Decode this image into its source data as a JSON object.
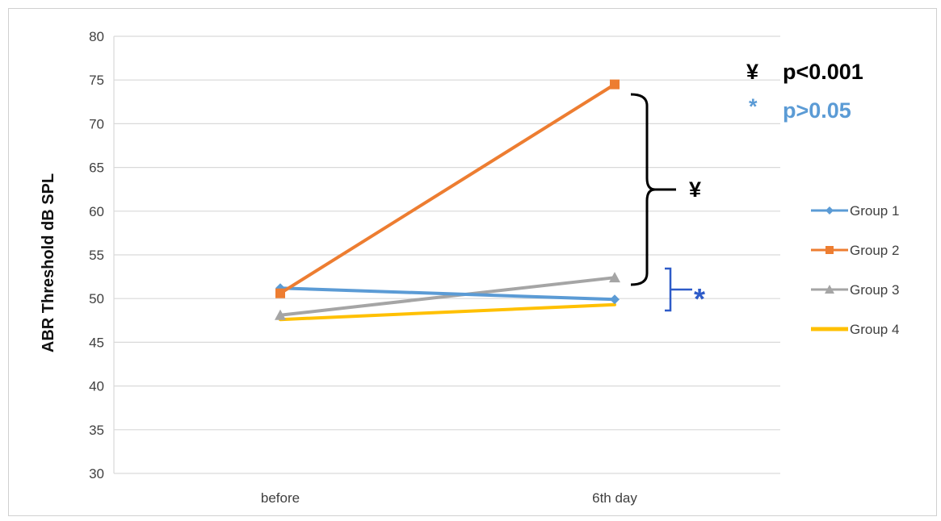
{
  "chart_data": {
    "type": "line",
    "title": "",
    "xlabel": "",
    "ylabel": "ABR  Threshold dB SPL",
    "categories": [
      "before",
      "6th day"
    ],
    "ylim": [
      30,
      80
    ],
    "yticks": [
      30,
      35,
      40,
      45,
      50,
      55,
      60,
      65,
      70,
      75,
      80
    ],
    "grid": true,
    "legend_position": "right",
    "series": [
      {
        "name": "Group 1",
        "values": [
          51.2,
          49.9
        ],
        "color": "#5b9bd5",
        "marker": "diamond"
      },
      {
        "name": "Group 2",
        "values": [
          50.6,
          74.5
        ],
        "color": "#ed7d31",
        "marker": "square"
      },
      {
        "name": "Group 3",
        "values": [
          48.1,
          52.4
        ],
        "color": "#a5a5a5",
        "marker": "triangle"
      },
      {
        "name": "Group 4",
        "values": [
          47.6,
          49.3
        ],
        "color": "#ffc000",
        "marker": "none"
      }
    ],
    "annotations": {
      "legend_p1_symbol": "¥",
      "legend_p1_text": "p<0.001",
      "legend_p2_symbol": "*",
      "legend_p2_text": "p>0.05",
      "bracket1_symbol": "¥",
      "bracket2_symbol": "*"
    }
  }
}
